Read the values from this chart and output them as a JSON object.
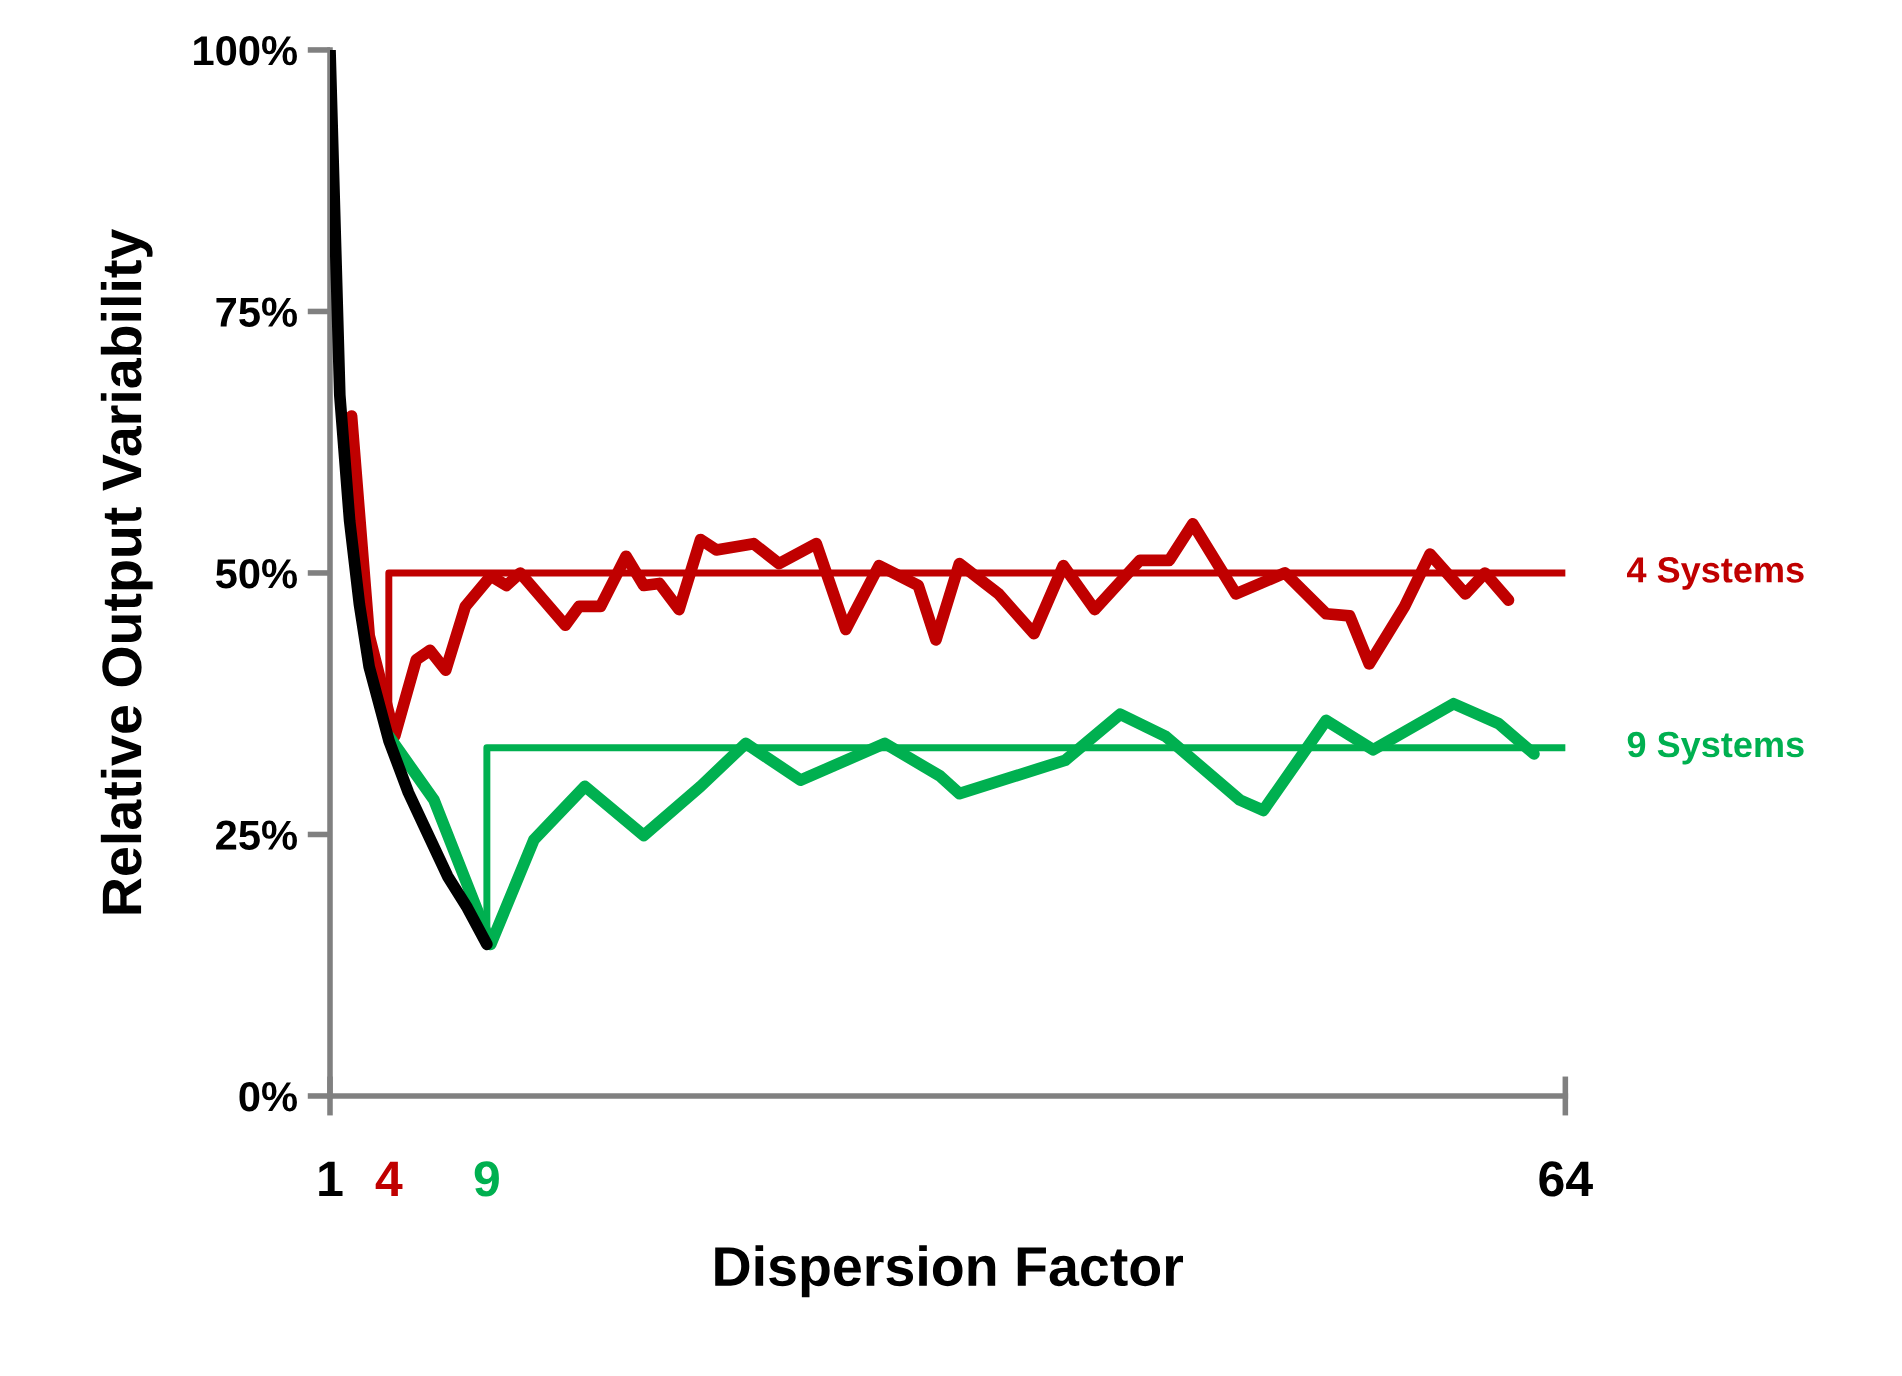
{
  "chart_data": {
    "type": "line",
    "xlabel": "Dispersion Factor",
    "ylabel": "Relative Output Variability",
    "xlim": [
      1,
      64
    ],
    "xticks": [
      1,
      4,
      9,
      64
    ],
    "ylim": [
      0,
      100
    ],
    "yticks": [
      {
        "value": 0,
        "label": "0%"
      },
      {
        "value": 25,
        "label": "25%"
      },
      {
        "value": 50,
        "label": "50%"
      },
      {
        "value": 75,
        "label": "75%"
      },
      {
        "value": 100,
        "label": "100%"
      }
    ],
    "grid": false,
    "legend": false,
    "marker": "none",
    "line_style": "solid",
    "series": [
      {
        "color": "#c00000",
        "x": [
          2.1,
          3,
          4.3,
          5.4,
          6.1,
          6.9,
          7.9,
          9.2,
          10,
          10.7,
          13,
          13.7,
          14.8,
          16.1,
          17,
          17.8,
          18.8,
          19.9,
          20.7,
          22.6,
          23.9,
          25.8,
          27.3,
          29,
          31,
          31.9,
          33.1,
          35.1,
          36.9,
          38.4,
          40,
          42.3,
          43.8,
          45,
          47.2,
          49.7,
          51.8,
          53,
          54,
          55.8,
          57.1,
          58.9,
          59.9,
          61.1
        ],
        "values": [
          65,
          44,
          34.4,
          41.7,
          42.6,
          40.7,
          46.8,
          49.7,
          48.8,
          50,
          45,
          46.8,
          46.8,
          51.6,
          48.8,
          49,
          46.5,
          53.2,
          52.2,
          52.8,
          50.9,
          52.8,
          44.6,
          50.7,
          48.8,
          43.6,
          50.9,
          48,
          44.2,
          50.7,
          46.5,
          51.2,
          51.2,
          54.7,
          48,
          50,
          46.1,
          45.9,
          41.3,
          46.8,
          51.8,
          48,
          50,
          47.4
        ]
      },
      {
        "color": "#00b050",
        "x": [
          4,
          6.3,
          9.2,
          11.4,
          14,
          17,
          19.9,
          22.2,
          25,
          29.3,
          32.1,
          33.1,
          38.5,
          41.3,
          43.6,
          47.4,
          48.6,
          51.8,
          54.2,
          58.3,
          60.6,
          62.4
        ],
        "values": [
          34.4,
          28.3,
          14.5,
          24.5,
          29.6,
          24.9,
          29.6,
          33.7,
          30.2,
          33.7,
          30.6,
          28.9,
          32.1,
          36.5,
          34.4,
          28.3,
          27.3,
          35.9,
          33.1,
          37.5,
          35.6,
          32.7
        ]
      },
      {
        "color": "#000000",
        "x": [
          1,
          1.5,
          2,
          2.5,
          3,
          4,
          5,
          6,
          7,
          8,
          9
        ],
        "values": [
          100,
          67,
          55,
          47,
          41,
          34,
          29,
          25,
          21,
          18,
          14.5
        ]
      },
      {
        "name": "4 Systems",
        "color": "#c00000",
        "x": [
          4,
          4,
          64
        ],
        "values": [
          36,
          50,
          50
        ]
      },
      {
        "name": "9 Systems",
        "color": "#00b050",
        "x": [
          9,
          9,
          64
        ],
        "values": [
          14.5,
          33.3,
          33.3
        ]
      }
    ]
  }
}
